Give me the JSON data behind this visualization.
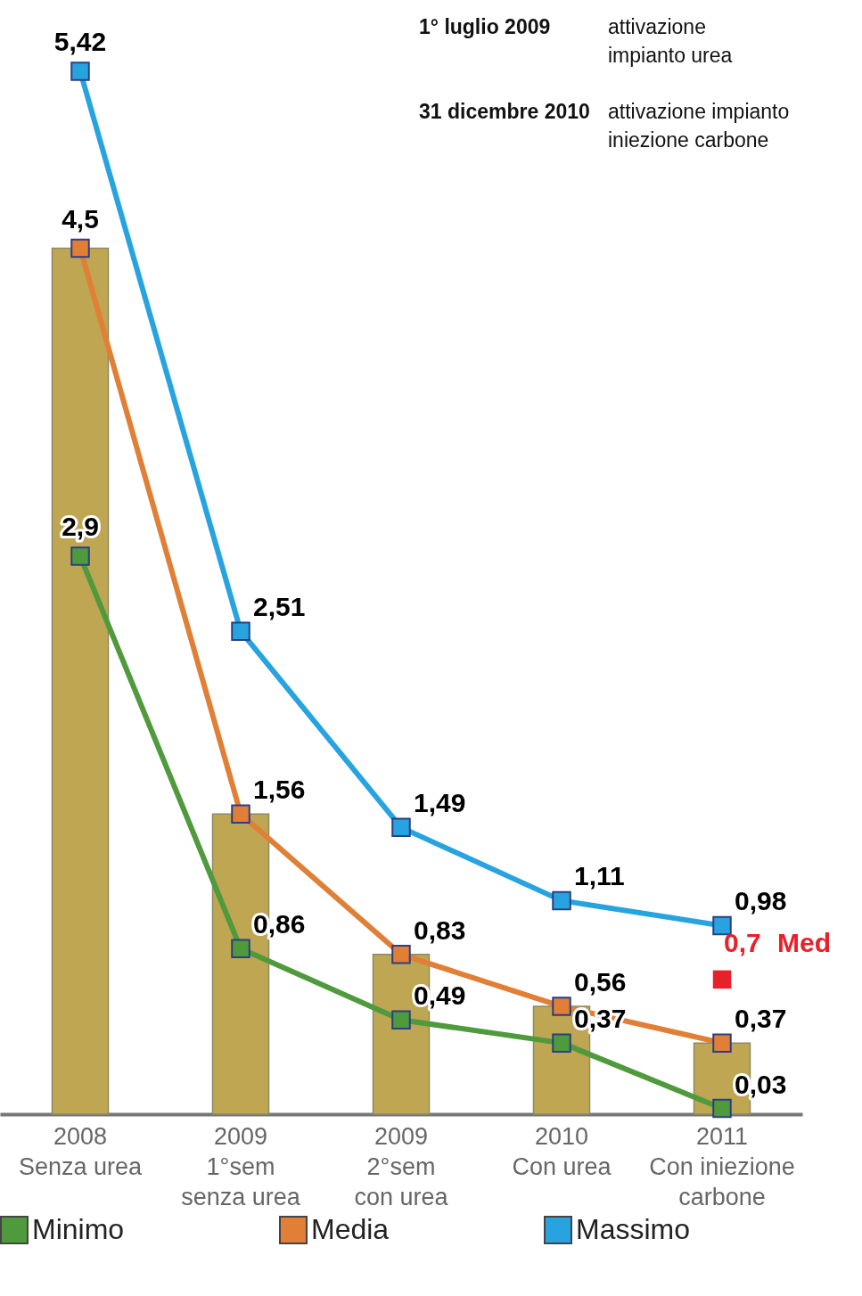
{
  "chart_data": {
    "type": "line",
    "categories": [
      "2008\nSenza urea",
      "2009\n1°sem\nsenza urea",
      "2009\n2°sem\ncon urea",
      "2010\nCon urea",
      "2011\nCon iniezione\ncarbone"
    ],
    "series": [
      {
        "type": "bar",
        "color": "#bfa653",
        "values": [
          4.5,
          1.56,
          0.83,
          0.56,
          0.37
        ]
      },
      {
        "name": "Minimo",
        "color": "#4f9a3c",
        "values": [
          2.9,
          0.86,
          0.49,
          0.37,
          0.03
        ],
        "value_labels": [
          "2,9",
          "0,86",
          "0,49",
          "0,37",
          "0,03"
        ]
      },
      {
        "name": "Media",
        "color": "#e07f35",
        "values": [
          4.5,
          1.56,
          0.83,
          0.56,
          0.37
        ],
        "value_labels": [
          "4,5",
          "1,56",
          "0,83",
          "0,56",
          "0,37"
        ]
      },
      {
        "name": "Massimo",
        "color": "#27a4df",
        "values": [
          5.42,
          2.51,
          1.49,
          1.11,
          0.98
        ],
        "value_labels": [
          "5,42",
          "2,51",
          "1,49",
          "1,11",
          "0,98"
        ]
      },
      {
        "type": "scatter",
        "name": "Med",
        "color": "#e8202a",
        "values": [
          null,
          null,
          null,
          null,
          0.7
        ],
        "value_labels": [
          null,
          null,
          null,
          null,
          "0,7"
        ]
      }
    ],
    "tick_labels": "x",
    "marker": "square",
    "line_style": "solid",
    "legend": "bottom",
    "annotations": [
      "1° luglio 2009",
      "attivazione\nimpianto urea",
      "31 dicembre 2010",
      "attivazione impianto\niniezione carbone"
    ]
  }
}
